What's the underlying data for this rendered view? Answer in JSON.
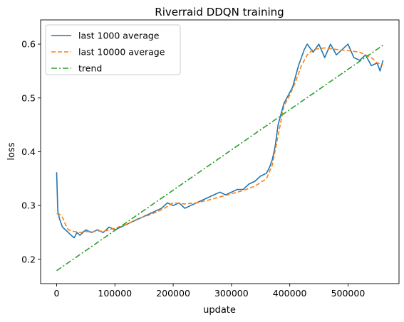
{
  "chart_data": {
    "type": "line",
    "title": "Riverraid DDQN training",
    "xlabel": "update",
    "ylabel": "loss",
    "xlim": [
      -27500,
      587500
    ],
    "ylim": [
      0.155,
      0.645
    ],
    "x_ticks": [
      0,
      100000,
      200000,
      300000,
      400000,
      500000
    ],
    "x_tick_labels": [
      "0",
      "100000",
      "200000",
      "300000",
      "400000",
      "500000"
    ],
    "y_ticks": [
      0.2,
      0.3,
      0.4,
      0.5,
      0.6
    ],
    "y_tick_labels": [
      "0.2",
      "0.3",
      "0.4",
      "0.5",
      "0.6"
    ],
    "legend_position": "upper-left",
    "grid": false,
    "series": [
      {
        "name": "last 1000 average",
        "color": "#1f77b4",
        "style": "solid",
        "x": [
          0,
          2000,
          5000,
          10000,
          15000,
          20000,
          25000,
          30000,
          35000,
          40000,
          50000,
          60000,
          70000,
          80000,
          90000,
          100000,
          110000,
          120000,
          130000,
          140000,
          150000,
          160000,
          170000,
          180000,
          190000,
          200000,
          210000,
          220000,
          230000,
          240000,
          250000,
          260000,
          270000,
          280000,
          290000,
          300000,
          310000,
          320000,
          330000,
          340000,
          350000,
          360000,
          365000,
          370000,
          375000,
          380000,
          385000,
          390000,
          395000,
          400000,
          405000,
          410000,
          415000,
          420000,
          425000,
          430000,
          440000,
          450000,
          460000,
          470000,
          480000,
          490000,
          500000,
          510000,
          520000,
          530000,
          540000,
          550000,
          555000,
          560000
        ],
        "values": [
          0.362,
          0.29,
          0.275,
          0.26,
          0.255,
          0.25,
          0.245,
          0.24,
          0.25,
          0.245,
          0.255,
          0.25,
          0.255,
          0.25,
          0.26,
          0.255,
          0.26,
          0.265,
          0.27,
          0.275,
          0.28,
          0.285,
          0.29,
          0.295,
          0.305,
          0.3,
          0.305,
          0.295,
          0.3,
          0.305,
          0.31,
          0.315,
          0.32,
          0.325,
          0.32,
          0.325,
          0.33,
          0.33,
          0.34,
          0.345,
          0.355,
          0.36,
          0.37,
          0.385,
          0.41,
          0.45,
          0.47,
          0.49,
          0.5,
          0.51,
          0.52,
          0.54,
          0.56,
          0.575,
          0.59,
          0.6,
          0.585,
          0.6,
          0.575,
          0.6,
          0.58,
          0.59,
          0.6,
          0.575,
          0.57,
          0.58,
          0.56,
          0.565,
          0.55,
          0.57
        ]
      },
      {
        "name": "last 10000 average",
        "color": "#ff7f0e",
        "style": "dashed",
        "x": [
          0,
          5000,
          10000,
          15000,
          20000,
          30000,
          40000,
          50000,
          60000,
          70000,
          80000,
          90000,
          100000,
          120000,
          140000,
          160000,
          180000,
          200000,
          220000,
          240000,
          260000,
          280000,
          300000,
          320000,
          340000,
          360000,
          370000,
          380000,
          390000,
          400000,
          410000,
          420000,
          430000,
          440000,
          460000,
          480000,
          500000,
          520000,
          540000,
          550000,
          560000
        ],
        "values": [
          0.285,
          0.284,
          0.278,
          0.265,
          0.255,
          0.252,
          0.25,
          0.252,
          0.251,
          0.253,
          0.252,
          0.255,
          0.258,
          0.265,
          0.276,
          0.283,
          0.292,
          0.305,
          0.303,
          0.305,
          0.31,
          0.316,
          0.322,
          0.328,
          0.336,
          0.35,
          0.375,
          0.43,
          0.485,
          0.505,
          0.53,
          0.56,
          0.58,
          0.59,
          0.593,
          0.59,
          0.588,
          0.585,
          0.575,
          0.565,
          0.562
        ]
      },
      {
        "name": "trend",
        "color": "#2ca02c",
        "style": "dashdot",
        "x": [
          0,
          560000
        ],
        "values": [
          0.179,
          0.598
        ]
      }
    ]
  }
}
